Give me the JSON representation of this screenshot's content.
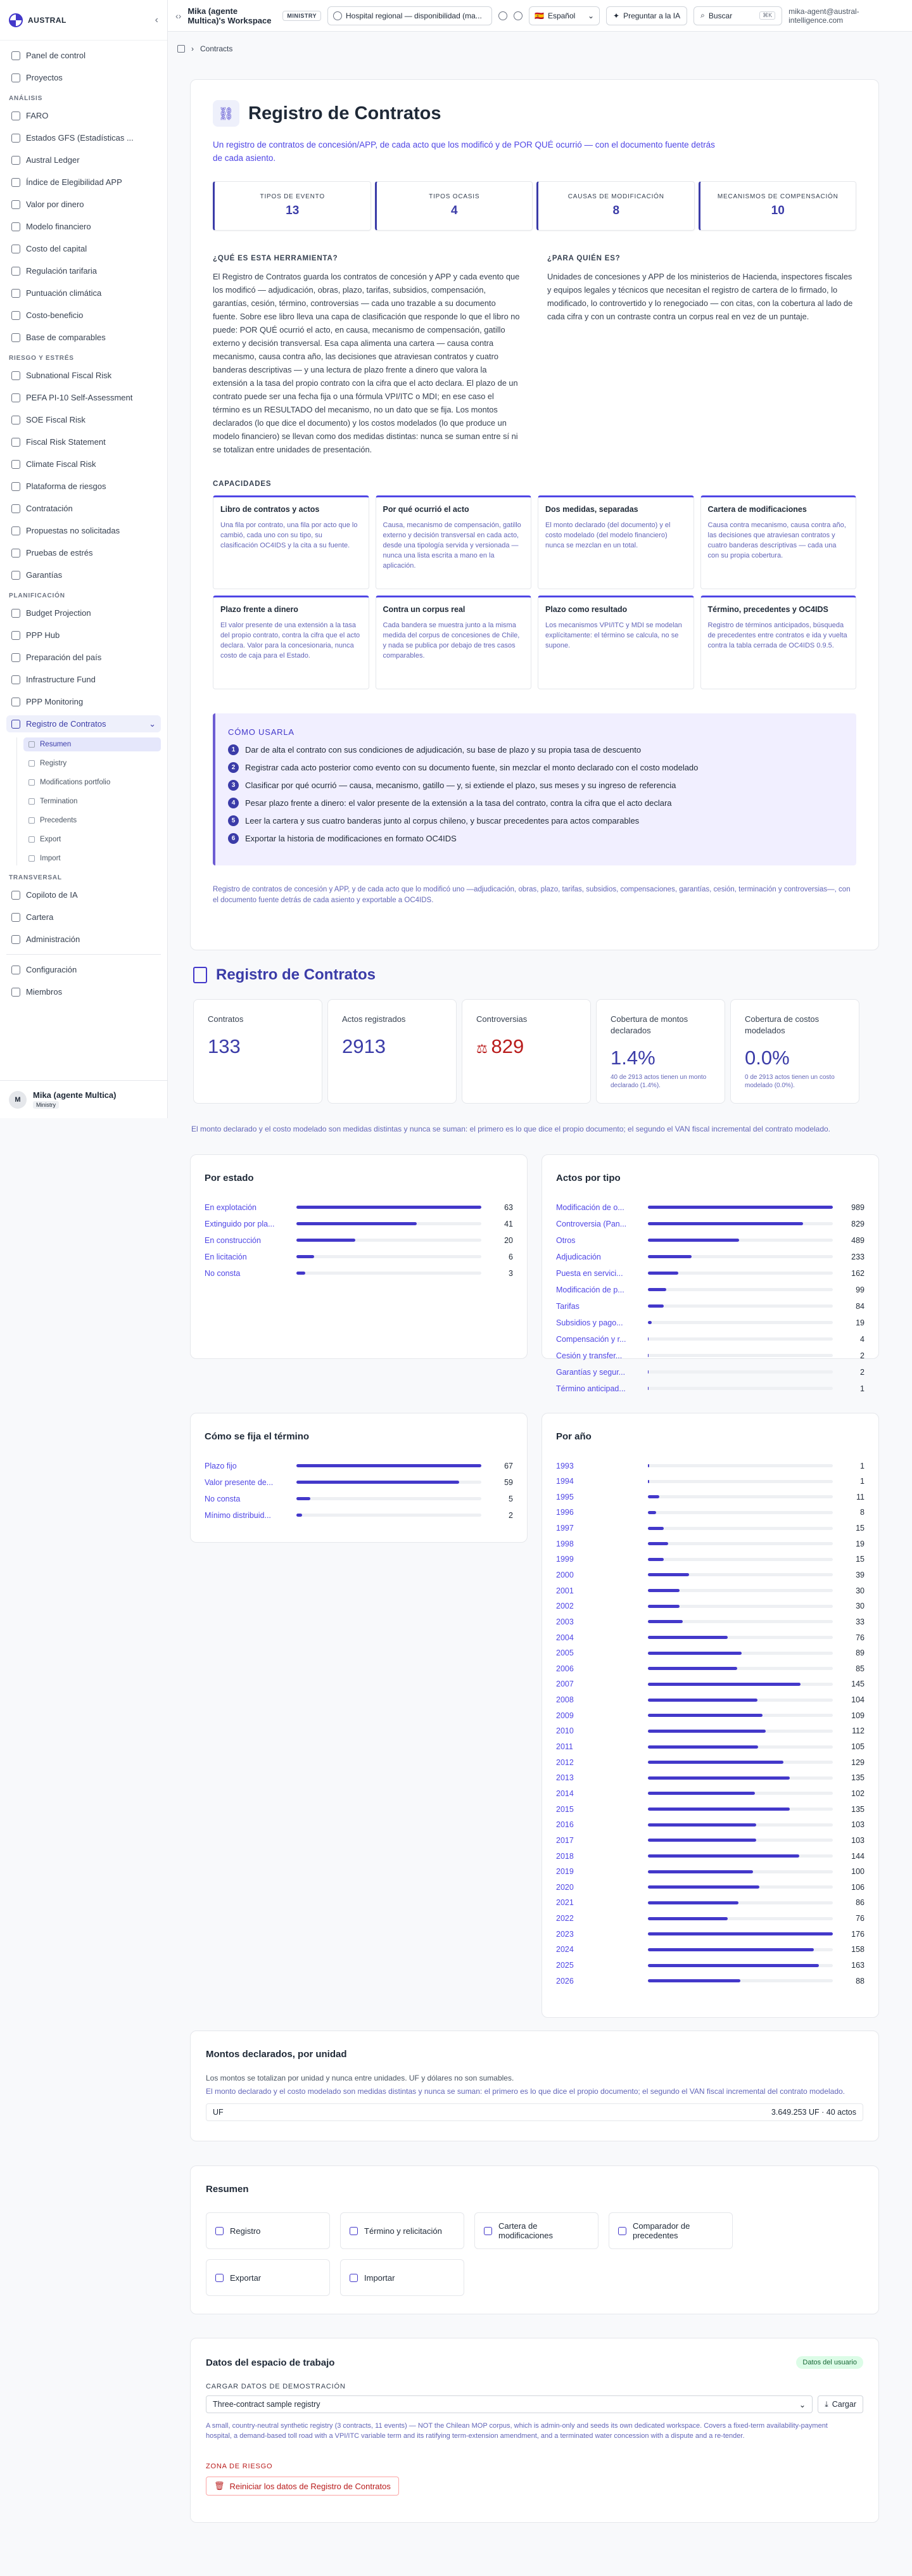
{
  "sidebar": {
    "brand": "AUSTRAL",
    "top": [
      {
        "label": "Panel de control",
        "icon": "dashboard-icon"
      },
      {
        "label": "Proyectos",
        "icon": "folder-icon"
      }
    ],
    "analisis_label": "ANÁLISIS",
    "analisis": [
      "FARO",
      "Estados GFS (Estadísticas ...",
      "Austral Ledger",
      "Índice de Elegibilidad APP",
      "Valor por dinero",
      "Modelo financiero",
      "Costo del capital",
      "Regulación tarifaria",
      "Puntuación climática",
      "Costo-beneficio",
      "Base de comparables"
    ],
    "riesgo_label": "RIESGO Y ESTRÉS",
    "riesgo": [
      "Subnational Fiscal Risk",
      "PEFA PI-10 Self-Assessment",
      "SOE Fiscal Risk",
      "Fiscal Risk Statement",
      "Climate Fiscal Risk",
      "Plataforma de riesgos",
      "Contratación",
      "Propuestas no solicitadas",
      "Pruebas de estrés",
      "Garantías"
    ],
    "plan_label": "PLANIFICACIÓN",
    "plan": [
      "Budget Projection",
      "PPP Hub",
      "Preparación del país",
      "Infrastructure Fund",
      "PPP Monitoring"
    ],
    "active": "Registro de Contratos",
    "subitems": [
      "Resumen",
      "Registry",
      "Modifications portfolio",
      "Termination",
      "Precedents",
      "Export",
      "Import"
    ],
    "trans_label": "TRANSVERSAL",
    "trans": [
      "Copiloto de IA",
      "Cartera",
      "Administración"
    ],
    "bottom": [
      "Configuración",
      "Miembros"
    ],
    "user": {
      "initial": "M",
      "name": "Mika (agente Multica)",
      "badge": "Ministry"
    }
  },
  "topbar": {
    "workspace": "Mika (agente Multica)'s Workspace",
    "tag": "MINISTRY",
    "project": "Hospital regional — disponibilidad (ma...",
    "lang": "Español",
    "ask": "Preguntar a la IA",
    "search": "Buscar",
    "kbd": "⌘K",
    "email": "mika-agent@austral-intelligence.com"
  },
  "breadcrumb": "Contracts",
  "hero": {
    "title": "Registro de Contratos",
    "lead": "Un registro de contratos de concesión/APP, de cada acto que los modificó y de POR QUÉ ocurrió — con el documento fuente detrás de cada asiento.",
    "stats": [
      {
        "label": "TIPOS DE EVENTO",
        "value": "13"
      },
      {
        "label": "TIPOS OCASIS",
        "value": "4"
      },
      {
        "label": "CAUSAS DE MODIFICACIÓN",
        "value": "8"
      },
      {
        "label": "MECANISMOS DE COMPENSACIÓN",
        "value": "10"
      }
    ],
    "what_h": "¿QUÉ ES ESTA HERRAMIENTA?",
    "what_p": "El Registro de Contratos guarda los contratos de concesión y APP y cada evento que los modificó — adjudicación, obras, plazo, tarifas, subsidios, compensación, garantías, cesión, término, controversias — cada uno trazable a su documento fuente. Sobre ese libro lleva una capa de clasificación que responde lo que el libro no puede: POR QUÉ ocurrió el acto, en causa, mecanismo de compensación, gatillo externo y decisión transversal. Esa capa alimenta una cartera — causa contra mecanismo, causa contra año, las decisiones que atraviesan contratos y cuatro banderas descriptivas — y una lectura de plazo frente a dinero que valora la extensión a la tasa del propio contrato con la cifra que el acto declara. El plazo de un contrato puede ser una fecha fija o una fórmula VPI/ITC o MDI; en ese caso el término es un RESULTADO del mecanismo, no un dato que se fija. Los montos declarados (lo que dice el documento) y los costos modelados (lo que produce un modelo financiero) se llevan como dos medidas distintas: nunca se suman entre sí ni se totalizan entre unidades de presentación.",
    "who_h": "¿PARA QUIÉN ES?",
    "who_p": "Unidades de concesiones y APP de los ministerios de Hacienda, inspectores fiscales y equipos legales y técnicos que necesitan el registro de cartera de lo firmado, lo modificado, lo controvertido y lo renegociado — con citas, con la cobertura al lado de cada cifra y con un contraste contra un corpus real en vez de un puntaje.",
    "cap_h": "CAPACIDADES",
    "caps": [
      {
        "t": "Libro de contratos y actos",
        "d": "Una fila por contrato, una fila por acto que lo cambió, cada uno con su tipo, su clasificación OC4IDS y la cita a su fuente."
      },
      {
        "t": "Por qué ocurrió el acto",
        "d": "Causa, mecanismo de compensación, gatillo externo y decisión transversal en cada acto, desde una tipología servida y versionada — nunca una lista escrita a mano en la aplicación."
      },
      {
        "t": "Dos medidas, separadas",
        "d": "El monto declarado (del documento) y el costo modelado (del modelo financiero) nunca se mezclan en un total."
      },
      {
        "t": "Cartera de modificaciones",
        "d": "Causa contra mecanismo, causa contra año, las decisiones que atraviesan contratos y cuatro banderas descriptivas — cada una con su propia cobertura."
      },
      {
        "t": "Plazo frente a dinero",
        "d": "El valor presente de una extensión a la tasa del propio contrato, contra la cifra que el acto declara. Valor para la concesionaria, nunca costo de caja para el Estado."
      },
      {
        "t": "Contra un corpus real",
        "d": "Cada bandera se muestra junto a la misma medida del corpus de concesiones de Chile, y nada se publica por debajo de tres casos comparables."
      },
      {
        "t": "Plazo como resultado",
        "d": "Los mecanismos VPI/ITC y MDI se modelan explícitamente: el término se calcula, no se supone."
      },
      {
        "t": "Término, precedentes y OC4IDS",
        "d": "Registro de términos anticipados, búsqueda de precedentes entre contratos e ida y vuelta contra la tabla cerrada de OC4IDS 0.9.5."
      }
    ],
    "how_h": "CÓMO USARLA",
    "steps": [
      "Dar de alta el contrato con sus condiciones de adjudicación, su base de plazo y su propia tasa de descuento",
      "Registrar cada acto posterior como evento con su documento fuente, sin mezclar el monto declarado con el costo modelado",
      "Clasificar por qué ocurrió — causa, mecanismo, gatillo — y, si extiende el plazo, sus meses y su ingreso de referencia",
      "Pesar plazo frente a dinero: el valor presente de la extensión a la tasa del contrato, contra la cifra que el acto declara",
      "Leer la cartera y sus cuatro banderas junto al corpus chileno, y buscar precedentes para actos comparables",
      "Exportar la historia de modificaciones en formato OC4IDS"
    ],
    "foot": "Registro de contratos de concesión y APP, y de cada acto que lo modificó uno —adjudicación, obras, plazo, tarifas, subsidios, compensaciones, garantías, cesión, terminación y controversias—, con el documento fuente detrás de cada asiento y exportable a OC4IDS."
  },
  "section": {
    "title": "Registro de Contratos",
    "kpis": [
      {
        "label": "Contratos",
        "value": "133",
        "sub": ""
      },
      {
        "label": "Actos registrados",
        "value": "2913",
        "sub": ""
      },
      {
        "label": "Controversias",
        "value": "829",
        "sub": ""
      },
      {
        "label": "Cobertura de montos declarados",
        "value": "1.4%",
        "sub": "40 de 2913 actos tienen un monto declarado (1.4%)."
      },
      {
        "label": "Cobertura de costos modelados",
        "value": "0.0%",
        "sub": "0 de 2913 actos tienen un costo modelado (0.0%)."
      }
    ],
    "note": "El monto declarado y el costo modelado son medidas distintas y nunca se suman: el primero es lo que dice el propio documento; el segundo el VAN fiscal incremental del contrato modelado."
  },
  "chart_data": [
    {
      "type": "bar",
      "title": "Por estado",
      "categories": [
        "En explotación",
        "Extinguido por pla...",
        "En construcción",
        "En licitación",
        "No consta"
      ],
      "values": [
        63,
        41,
        20,
        6,
        3
      ]
    },
    {
      "type": "bar",
      "title": "Actos por tipo",
      "categories": [
        "Modificación de o...",
        "Controversia (Pan...",
        "Otros",
        "Adjudicación",
        "Puesta en servici...",
        "Modificación de p...",
        "Tarifas",
        "Subsidios y pago...",
        "Compensación y r...",
        "Cesión y transfer...",
        "Garantías y segur...",
        "Término anticipad..."
      ],
      "values": [
        989,
        829,
        489,
        233,
        162,
        99,
        84,
        19,
        4,
        2,
        2,
        1
      ]
    },
    {
      "type": "bar",
      "title": "Cómo se fija el término",
      "categories": [
        "Plazo fijo",
        "Valor presente de...",
        "No consta",
        "Mínimo distribuid..."
      ],
      "values": [
        67,
        59,
        5,
        2
      ]
    },
    {
      "type": "bar",
      "title": "Por año",
      "categories": [
        "1993",
        "1994",
        "1995",
        "1996",
        "1997",
        "1998",
        "1999",
        "2000",
        "2001",
        "2002",
        "2003",
        "2004",
        "2005",
        "2006",
        "2007",
        "2008",
        "2009",
        "2010",
        "2011",
        "2012",
        "2013",
        "2014",
        "2015",
        "2016",
        "2017",
        "2018",
        "2019",
        "2020",
        "2021",
        "2022",
        "2023",
        "2024",
        "2025",
        "2026"
      ],
      "values": [
        1,
        1,
        11,
        8,
        15,
        19,
        15,
        39,
        30,
        30,
        33,
        76,
        89,
        85,
        145,
        104,
        109,
        112,
        105,
        129,
        135,
        102,
        135,
        103,
        103,
        144,
        100,
        106,
        86,
        76,
        176,
        158,
        163,
        88
      ]
    }
  ],
  "montos": {
    "title": "Montos declarados, por unidad",
    "sub": "Los montos se totalizan por unidad y nunca entre unidades. UF y dólares no son sumables.",
    "sub2": "El monto declarado y el costo modelado son medidas distintas y nunca se suman: el primero es lo que dice el propio documento; el segundo el VAN fiscal incremental del contrato modelado.",
    "unit": "UF",
    "value": "3.649.253 UF · 40 actos"
  },
  "resumen": {
    "title": "Resumen",
    "buttons": [
      "Registro",
      "Término y relicitación",
      "Cartera de modificaciones",
      "Comparador de precedentes",
      "Exportar",
      "Importar"
    ]
  },
  "workspace": {
    "title": "Datos del espacio de trabajo",
    "badge": "Datos del usuario",
    "label": "CARGAR DATOS DE DEMOSTRACIÓN",
    "select": "Three-contract sample registry",
    "load": "Cargar",
    "note": "A small, country-neutral synthetic registry (3 contracts, 11 events) — NOT the Chilean MOP corpus, which is admin-only and seeds its own dedicated workspace. Covers a fixed-term availability-payment hospital, a demand-based toll road with a VPI/ITC variable term and its ratifying term-extension amendment, and a terminated water concession with a dispute and a re-tender.",
    "danger": "ZONA DE RIESGO",
    "reset": "Reiniciar los datos de Registro de Contratos"
  }
}
